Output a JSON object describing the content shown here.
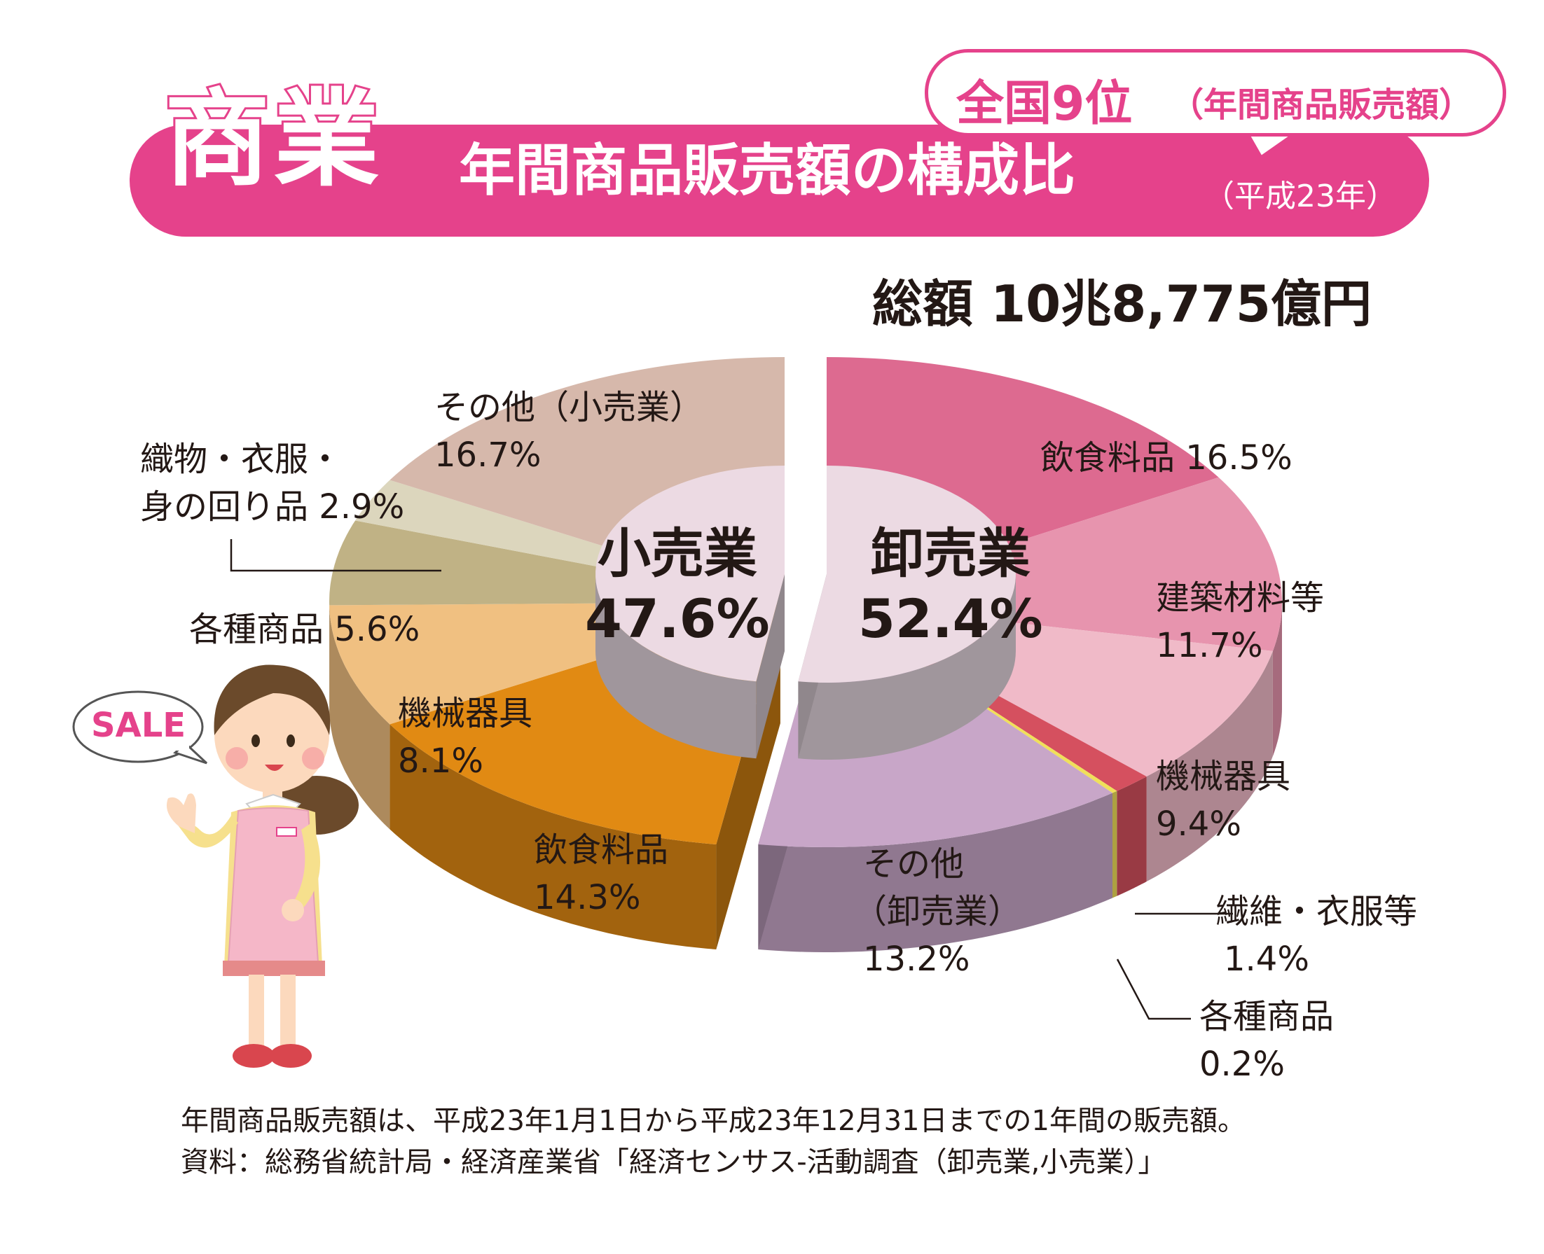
{
  "header": {
    "category": "商業",
    "title": "年間商品販売額の構成比",
    "year_note": "（平成23年）",
    "rank": "全国9位",
    "rank_note": "（年間商品販売額）"
  },
  "total": "総額  10兆8,775億円",
  "center_labels": {
    "retail_name": "小売業",
    "retail_pct": "47.6%",
    "wholesale_name": "卸売業",
    "wholesale_pct": "52.4%"
  },
  "labels": {
    "r_other_1": "その他（小売業）",
    "r_other_2": "16.7%",
    "r_textile_1": "織物・衣服・",
    "r_textile_2": "身の回り品 2.9%",
    "r_general": "各種商品 5.6%",
    "r_machine_1": "機械器具",
    "r_machine_2": "8.1%",
    "r_food_1": "飲食料品",
    "r_food_2": "14.3%",
    "w_food": "飲食料品 16.5%",
    "w_building_1": "建築材料等",
    "w_building_2": "11.7%",
    "w_machine_1": "機械器具",
    "w_machine_2": "9.4%",
    "w_textile_1": "繊維・衣服等",
    "w_textile_2": "1.4%",
    "w_general_1": "各種商品",
    "w_general_2": "0.2%",
    "w_other_1": "その他",
    "w_other_2": "（卸売業）",
    "w_other_3": "13.2%"
  },
  "sale_text": "SALE",
  "footnotes": [
    "年間商品販売額は、平成23年1月1日から平成23年12月31日までの1年間の販売額。",
    "資料：総務省統計局・経済産業省「経済センサス-活動調査（卸売業,小売業）」"
  ],
  "colors": {
    "accent": "#e5428b",
    "retail_food": "#e18a13",
    "retail_machine": "#f0c081",
    "retail_general": "#c0b285",
    "retail_textile": "#dcd6bd",
    "retail_other": "#d6b8ab",
    "wholesale_food": "#dd6a90",
    "wholesale_building": "#e794ae",
    "wholesale_machine": "#f0bac8",
    "wholesale_textile": "#d5505f",
    "wholesale_general": "#f0e05a",
    "wholesale_other": "#c8a6c8",
    "center_top": "#ecdae3",
    "center_side": "#a0969c"
  },
  "chart_data": {
    "type": "pie",
    "title": "年間商品販売額の構成比",
    "unit": "%",
    "groups": [
      {
        "name": "小売業",
        "value": 47.6,
        "slices": [
          {
            "name": "飲食料品",
            "value": 14.3
          },
          {
            "name": "機械器具",
            "value": 8.1
          },
          {
            "name": "各種商品",
            "value": 5.6
          },
          {
            "name": "織物・衣服・身の回り品",
            "value": 2.9
          },
          {
            "name": "その他（小売業）",
            "value": 16.7
          }
        ]
      },
      {
        "name": "卸売業",
        "value": 52.4,
        "slices": [
          {
            "name": "飲食料品",
            "value": 16.5
          },
          {
            "name": "建築材料等",
            "value": 11.7
          },
          {
            "name": "機械器具",
            "value": 9.4
          },
          {
            "name": "繊維・衣服等",
            "value": 1.4
          },
          {
            "name": "各種商品",
            "value": 0.2
          },
          {
            "name": "その他（卸売業）",
            "value": 13.2
          }
        ]
      }
    ]
  }
}
